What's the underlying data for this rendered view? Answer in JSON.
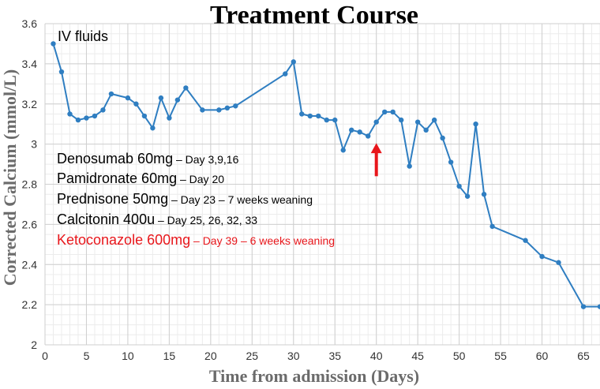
{
  "chart_data": {
    "type": "line",
    "title": "Treatment Course",
    "xlabel": "Time from admission (Days)",
    "ylabel": "Corrected Calcium (mmol/L)",
    "xlim": [
      0,
      67
    ],
    "ylim": [
      2,
      3.6
    ],
    "xticks": [
      "0",
      "5",
      "10",
      "15",
      "20",
      "25",
      "30",
      "35",
      "40",
      "45",
      "50",
      "55",
      "60",
      "65"
    ],
    "yticks": [
      "2",
      "2.2",
      "2.4",
      "2.6",
      "2.8",
      "3",
      "3.2",
      "3.4",
      "3.6"
    ],
    "grid": true,
    "line_color": "#2f7ec1",
    "arrow_color": "#e8161b",
    "arrow_day": 40,
    "series": [
      {
        "x": [
          1,
          2,
          3,
          4,
          5,
          6,
          7,
          8,
          10,
          11,
          12,
          13,
          14,
          15,
          16,
          17,
          19,
          21,
          22,
          23,
          29,
          30,
          31,
          32,
          33,
          34,
          35,
          36,
          37,
          38,
          39,
          40,
          41,
          42,
          43,
          44,
          45,
          46,
          47,
          48,
          49,
          50,
          51,
          52,
          53,
          54,
          58,
          60,
          62,
          65,
          67
        ],
        "y": [
          3.5,
          3.36,
          3.15,
          3.12,
          3.13,
          3.14,
          3.17,
          3.25,
          3.23,
          3.2,
          3.14,
          3.08,
          3.23,
          3.13,
          3.22,
          3.28,
          3.17,
          3.17,
          3.18,
          3.19,
          3.35,
          3.41,
          3.15,
          3.14,
          3.14,
          3.12,
          3.12,
          2.97,
          3.07,
          3.06,
          3.04,
          3.11,
          3.16,
          3.16,
          3.12,
          2.89,
          3.11,
          3.07,
          3.12,
          3.03,
          2.91,
          2.79,
          2.74,
          3.1,
          2.75,
          2.59,
          2.52,
          2.44,
          2.41,
          2.19,
          2.19
        ]
      }
    ],
    "annotations": [
      {
        "main": "IV fluids",
        "detail": "",
        "color": "#000000"
      },
      {
        "main": "Denosumab 60mg",
        "detail": " – Day 3,9,16",
        "color": "#000000"
      },
      {
        "main": "Pamidronate 60mg",
        "detail": " – Day 20",
        "color": "#000000"
      },
      {
        "main": "Prednisone 50mg",
        "detail": " – Day 23 – 7 weeks weaning",
        "color": "#000000"
      },
      {
        "main": "Calcitonin 400u",
        "detail": " – Day 25, 26, 32, 33",
        "color": "#000000"
      },
      {
        "main": "Ketoconazole 600mg",
        "detail": " – Day 39 – 6 weeks weaning",
        "color": "#e8161b"
      }
    ]
  }
}
